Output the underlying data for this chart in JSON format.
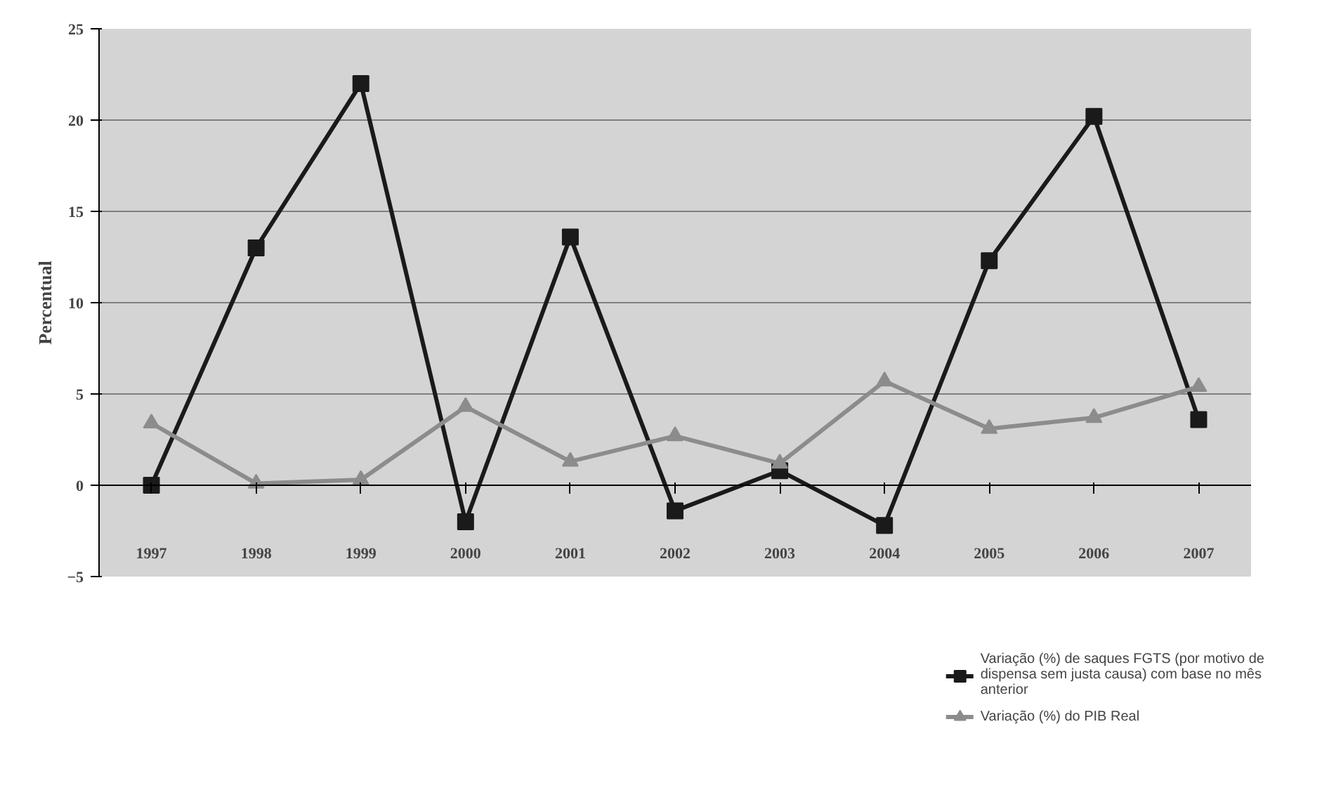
{
  "chart_data": {
    "type": "line",
    "ylabel": "Percentual",
    "categories": [
      "1997",
      "1998",
      "1999",
      "2000",
      "2001",
      "2002",
      "2003",
      "2004",
      "2005",
      "2006",
      "2007"
    ],
    "series": [
      {
        "name": "Variação (%) de saques FGTS (por motivo de dispensa sem justa causa) com base no mês anterior",
        "color": "#1a1a1a",
        "marker": "square",
        "values": [
          0,
          13,
          22,
          -2,
          13.6,
          -1.4,
          0.8,
          -2.2,
          12.3,
          20.2,
          3.6
        ]
      },
      {
        "name": "Variação (%) do PIB Real",
        "color": "#8c8c8c",
        "marker": "triangle",
        "values": [
          3.4,
          0.1,
          0.3,
          4.3,
          1.3,
          2.7,
          1.2,
          5.7,
          3.1,
          3.7,
          5.4
        ]
      }
    ],
    "ylim": [
      -5,
      25
    ],
    "yticks": [
      -5,
      0,
      5,
      10,
      15,
      20,
      25
    ],
    "grid": "y",
    "legend": "bottom right",
    "line_style": "solid"
  }
}
